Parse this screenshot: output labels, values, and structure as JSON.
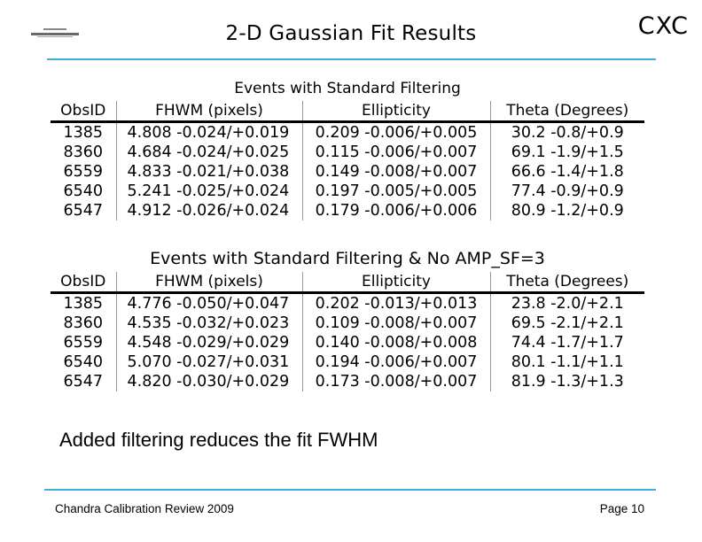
{
  "slide": {
    "title": "2-D Gaussian Fit Results",
    "corner_mark": "CXC",
    "accent_color": "#3FAEDC",
    "logo_icon": "cxc-mini-logo"
  },
  "tables": [
    {
      "title": "Events with Standard Filtering",
      "columns": [
        "ObsID",
        "FHWM (pixels)",
        "Ellipticity",
        "Theta (Degrees)"
      ],
      "rows": [
        [
          "1385",
          "4.808 -0.024/+0.019",
          "0.209 -0.006/+0.005",
          "30.2 -0.8/+0.9"
        ],
        [
          "8360",
          "4.684 -0.024/+0.025",
          "0.115 -0.006/+0.007",
          "69.1 -1.9/+1.5"
        ],
        [
          "6559",
          "4.833 -0.021/+0.038",
          "0.149 -0.008/+0.007",
          "66.6 -1.4/+1.8"
        ],
        [
          "6540",
          "5.241 -0.025/+0.024",
          "0.197 -0.005/+0.005",
          "77.4 -0.9/+0.9"
        ],
        [
          "6547",
          "4.912 -0.026/+0.024",
          "0.179 -0.006/+0.006",
          "80.9 -1.2/+0.9"
        ]
      ]
    },
    {
      "title": "Events with Standard Filtering & No AMP_SF=3",
      "columns": [
        "ObsID",
        "FHWM (pixels)",
        "Ellipticity",
        "Theta (Degrees)"
      ],
      "rows": [
        [
          "1385",
          "4.776 -0.050/+0.047",
          "0.202 -0.013/+0.013",
          "23.8 -2.0/+2.1"
        ],
        [
          "8360",
          "4.535 -0.032/+0.023",
          "0.109 -0.008/+0.007",
          "69.5 -2.1/+2.1"
        ],
        [
          "6559",
          "4.548 -0.029/+0.029",
          "0.140 -0.008/+0.008",
          "74.4 -1.7/+1.7"
        ],
        [
          "6540",
          "5.070 -0.027/+0.031",
          "0.194 -0.006/+0.007",
          "80.1 -1.1/+1.1"
        ],
        [
          "6547",
          "4.820 -0.030/+0.029",
          "0.173 -0.008/+0.007",
          "81.9 -1.3/+1.3"
        ]
      ]
    }
  ],
  "note": "Added filtering reduces the fit FWHM",
  "footer": {
    "left": "Chandra Calibration Review 2009",
    "right": "Page 10"
  }
}
